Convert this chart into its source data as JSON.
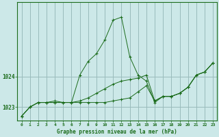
{
  "xlabel": "Graphe pression niveau de la mer (hPa)",
  "background_color": "#cce8e8",
  "grid_color": "#99bbbb",
  "line_color": "#1a6b1a",
  "hours": [
    0,
    1,
    2,
    3,
    4,
    5,
    6,
    7,
    8,
    9,
    10,
    11,
    12,
    13,
    14,
    15,
    16,
    17,
    18,
    19,
    20,
    21,
    22,
    23
  ],
  "series1": [
    1022.7,
    1023.0,
    1023.15,
    1023.15,
    1023.2,
    1023.15,
    1023.15,
    1024.05,
    1024.5,
    1024.75,
    1025.2,
    1025.85,
    1025.95,
    1024.65,
    1024.05,
    1023.85,
    1023.15,
    1023.35,
    1023.35,
    1023.45,
    1023.65,
    1024.05,
    1024.15,
    1024.45
  ],
  "series2": [
    1022.7,
    1023.0,
    1023.15,
    1023.15,
    1023.15,
    1023.15,
    1023.15,
    1023.2,
    1023.3,
    1023.45,
    1023.6,
    1023.75,
    1023.85,
    1023.9,
    1023.95,
    1024.05,
    1023.2,
    1023.35,
    1023.35,
    1023.45,
    1023.65,
    1024.05,
    1024.15,
    1024.45
  ],
  "series3": [
    1022.7,
    1023.0,
    1023.15,
    1023.15,
    1023.15,
    1023.15,
    1023.15,
    1023.15,
    1023.15,
    1023.15,
    1023.15,
    1023.2,
    1023.25,
    1023.3,
    1023.5,
    1023.7,
    1023.2,
    1023.35,
    1023.35,
    1023.45,
    1023.65,
    1024.05,
    1024.15,
    1024.45
  ],
  "ylim_min": 1022.55,
  "ylim_max": 1026.45,
  "ytick_vals": [
    1023,
    1024
  ],
  "ytick_labels": [
    "1023",
    "1024"
  ],
  "xticks": [
    0,
    1,
    2,
    3,
    4,
    5,
    6,
    7,
    8,
    9,
    10,
    11,
    12,
    13,
    14,
    15,
    16,
    17,
    18,
    19,
    20,
    21,
    22,
    23
  ]
}
